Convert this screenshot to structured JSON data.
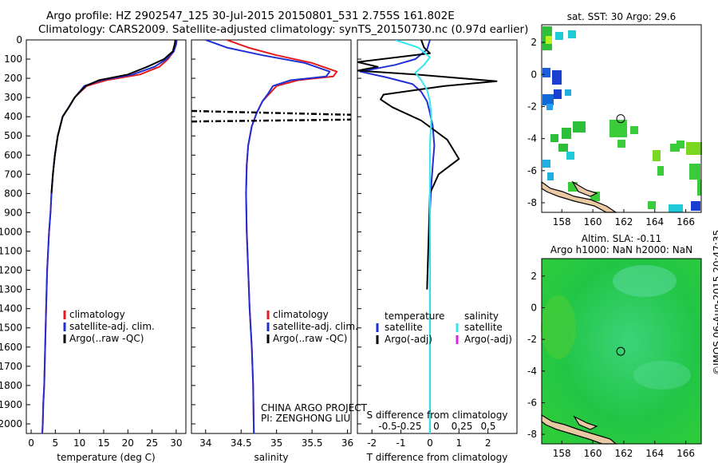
{
  "header": {
    "line1": "Argo profile: HZ 2902547_125 30-Jul-2015 20150801_531 2.755S 161.802E",
    "line2": "Climatology: CARS2009. Satellite-adjusted climatology: synTS_20150730.nc (0.97d earlier)"
  },
  "credit": "©IMOS 06-Aug-2015 20:47:35",
  "colors": {
    "climatology": "#e41a1c",
    "satellite": "#1f2fd6",
    "argo": "#000000",
    "satellite_s": "#33e6f0",
    "argo_s": "#e020e0"
  },
  "chart_data": [
    {
      "type": "line",
      "panel": "temperature",
      "xlabel": "temperature (deg C)",
      "ylabel": "",
      "xlim": [
        -1,
        32
      ],
      "ylim": [
        2050,
        0
      ],
      "xticks": [
        0,
        5,
        10,
        15,
        20,
        25,
        30
      ],
      "yticks": [
        0,
        100,
        200,
        300,
        400,
        500,
        600,
        700,
        800,
        900,
        1000,
        1100,
        1200,
        1300,
        1400,
        1500,
        1600,
        1700,
        1800,
        1900,
        2000
      ],
      "legend": [
        "climatology",
        "satellite-adj. clim.",
        "Argo(..raw -QC)"
      ],
      "series": [
        {
          "name": "climatology",
          "color": "#e41a1c",
          "x": [
            30.1,
            30.0,
            29.5,
            28.3,
            26.5,
            22.5,
            15.5,
            11.5,
            10.2,
            9.0,
            7.8,
            6.5,
            5.5,
            4.9,
            4.5,
            4.2,
            4.0,
            3.7,
            3.5,
            3.3,
            3.1,
            2.9,
            2.7,
            2.5,
            2.4,
            2.3
          ],
          "y": [
            0,
            20,
            60,
            100,
            140,
            180,
            210,
            240,
            270,
            300,
            350,
            400,
            500,
            600,
            700,
            800,
            900,
            1000,
            1100,
            1200,
            1400,
            1600,
            1800,
            1900,
            2000,
            2050
          ]
        },
        {
          "name": "satellite-adj. clim.",
          "color": "#1f2fd6",
          "x": [
            30.1,
            30.0,
            29.5,
            28.0,
            25.5,
            21.0,
            14.5,
            11.0,
            10.0,
            9.0,
            7.8,
            6.5,
            5.5,
            4.9,
            4.5,
            4.2,
            4.0,
            3.7,
            3.5,
            3.3,
            3.1,
            2.9,
            2.7,
            2.5,
            2.4,
            2.3
          ],
          "y": [
            0,
            20,
            60,
            100,
            140,
            180,
            210,
            240,
            270,
            300,
            350,
            400,
            500,
            600,
            700,
            800,
            900,
            1000,
            1100,
            1200,
            1400,
            1600,
            1800,
            1900,
            2000,
            2050
          ]
        },
        {
          "name": "Argo(..raw -QC)",
          "color": "#000000",
          "x": [
            29.8,
            29.7,
            29.3,
            27.5,
            24.0,
            20.0,
            14.0,
            11.3,
            10.1,
            9.0,
            7.8,
            6.5,
            5.5,
            4.9,
            4.5,
            4.2
          ],
          "y": [
            0,
            20,
            60,
            100,
            140,
            180,
            210,
            240,
            270,
            300,
            350,
            400,
            500,
            600,
            700,
            800
          ]
        }
      ]
    },
    {
      "type": "line",
      "panel": "salinity",
      "xlabel": "salinity",
      "xlim": [
        33.8,
        36.05
      ],
      "ylim": [
        2050,
        0
      ],
      "xticks": [
        34,
        34.5,
        35,
        35.5,
        36
      ],
      "legend": [
        "climatology",
        "satellite-adj. clim.",
        "Argo(..raw -QC)"
      ],
      "annotation": [
        "CHINA ARGO PROJECT",
        "PI: ZENGHONG LIU"
      ],
      "series": [
        {
          "name": "climatology",
          "color": "#e41a1c",
          "x": [
            34.3,
            34.6,
            35.0,
            35.5,
            35.85,
            35.8,
            35.3,
            35.0,
            34.9,
            34.8,
            34.72,
            34.65,
            34.6,
            34.58,
            34.57,
            34.58,
            34.6,
            34.62,
            34.65,
            34.67,
            34.68
          ],
          "y": [
            0,
            40,
            80,
            120,
            165,
            190,
            210,
            240,
            280,
            320,
            380,
            450,
            550,
            650,
            800,
            1000,
            1200,
            1400,
            1600,
            1800,
            2050
          ]
        },
        {
          "name": "satellite-adj. clim.",
          "color": "#1f2fd6",
          "x": [
            34.0,
            34.3,
            34.8,
            35.4,
            35.75,
            35.7,
            35.2,
            34.95,
            34.88,
            34.8,
            34.72,
            34.65,
            34.6,
            34.58,
            34.57,
            34.58,
            34.6,
            34.62,
            34.65,
            34.67,
            34.68
          ],
          "y": [
            0,
            40,
            80,
            120,
            165,
            190,
            210,
            240,
            280,
            320,
            380,
            450,
            550,
            650,
            800,
            1000,
            1200,
            1400,
            1600,
            1800,
            2050
          ]
        },
        {
          "name": "Argo(..raw -QC)",
          "color": "#000000",
          "dash": true,
          "x": [
            33.8,
            36.05,
            null,
            33.8,
            36.05
          ],
          "y": [
            370,
            390,
            null,
            425,
            415
          ]
        }
      ]
    },
    {
      "type": "line",
      "panel": "difference",
      "xlabel": "T difference from climatology",
      "x2label": "S difference from climatology",
      "xlim": [
        -2.5,
        3.0
      ],
      "ylim": [
        2050,
        0
      ],
      "xticks": [
        -2,
        -1,
        0,
        1,
        2
      ],
      "x2ticks": [
        "-0.5",
        "-0.25",
        "0",
        "0.25",
        "0.5"
      ],
      "legend": [
        "temperature",
        "satellite",
        "Argo(-adj)",
        "salinity",
        "satellite",
        "Argo(-adj)"
      ],
      "series": [
        {
          "name": "satellite",
          "color": "#1f2fd6",
          "x": [
            0,
            -0.1,
            -0.5,
            -1.2,
            -2.4,
            -1.5,
            -0.6,
            -0.3,
            -0.1,
            0.0,
            0.1,
            0.15,
            0.1,
            0.05,
            0.0,
            0.0,
            0.0,
            0.0,
            0.0
          ],
          "y": [
            0,
            50,
            100,
            130,
            165,
            195,
            230,
            270,
            320,
            380,
            450,
            550,
            650,
            750,
            900,
            1100,
            1400,
            1700,
            2050
          ]
        },
        {
          "name": "Argo(-adj)",
          "color": "#000000",
          "x": [
            -0.3,
            -0.2,
            0.0,
            -2.5,
            -1.8,
            -2.5,
            -0.5,
            2.3,
            0.5,
            -1.6,
            -1.7,
            -1.3,
            -0.3,
            0.6,
            1.0,
            0.3,
            0.0,
            -0.1
          ],
          "y": [
            0,
            40,
            70,
            115,
            140,
            160,
            180,
            215,
            240,
            285,
            310,
            350,
            420,
            520,
            620,
            700,
            800,
            1300
          ]
        },
        {
          "name": "satellite S",
          "color": "#33e6f0",
          "x": [
            -1.2,
            -0.4,
            0.0,
            -0.2,
            -0.5,
            -0.3,
            -0.1,
            0.0,
            0.05,
            0.0,
            0.0,
            0.0,
            0.0
          ],
          "y": [
            0,
            40,
            90,
            130,
            170,
            210,
            260,
            320,
            400,
            550,
            800,
            1200,
            2050
          ]
        }
      ]
    },
    {
      "type": "heatmap",
      "panel": "sst_map",
      "title": "sat. SST: 30 Argo: 29.6",
      "xlim": [
        156.7,
        167
      ],
      "ylim": [
        -8.6,
        3.1
      ],
      "xticks": [
        158,
        160,
        162,
        164,
        166
      ],
      "yticks": [
        2,
        0,
        -2,
        -4,
        -6,
        -8
      ],
      "marker": {
        "lon": 161.8,
        "lat": -2.755
      }
    },
    {
      "type": "heatmap",
      "panel": "sla_map",
      "title": "Altim. SLA: -0.11",
      "subtitle": "Argo h1000: NaN h2000: NaN",
      "xlim": [
        156.7,
        167
      ],
      "ylim": [
        -8.6,
        3.1
      ],
      "xticks": [
        158,
        160,
        162,
        164,
        166
      ],
      "yticks": [
        2,
        0,
        -2,
        -4,
        -6,
        -8
      ],
      "marker": {
        "lon": 161.8,
        "lat": -2.755
      }
    }
  ]
}
